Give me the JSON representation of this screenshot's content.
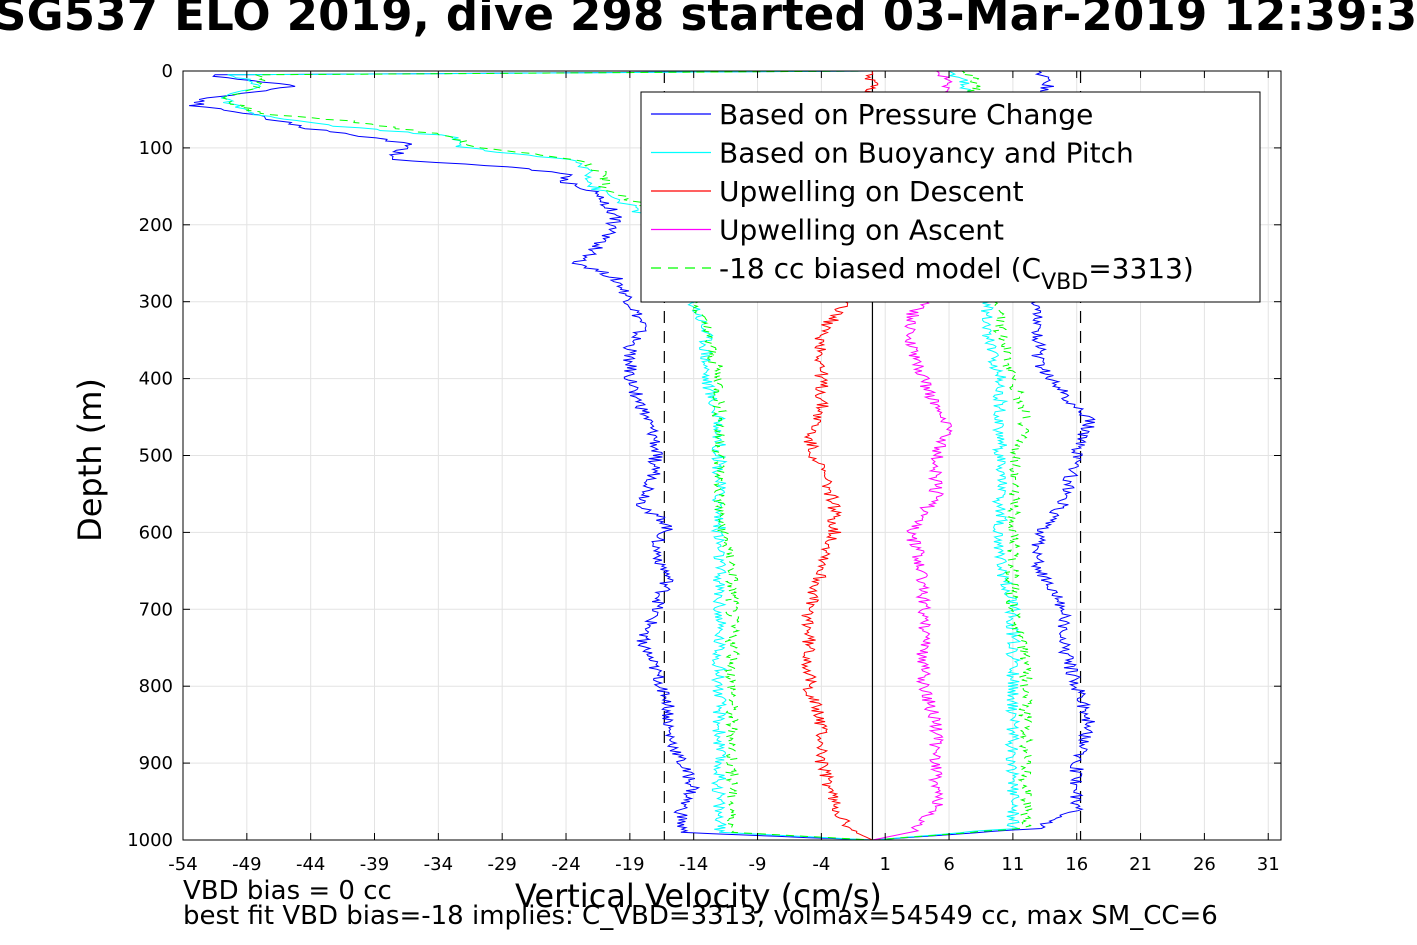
{
  "title": "SG537 ELO 2019, dive 298 started 03-Mar-2019 12:39:3",
  "footer": {
    "line1": "VBD bias = 0 cc",
    "line2": "best fit VBD bias=-18 implies: C_VBD=3313, volmax=54549 cc, max SM_CC=6"
  },
  "chart_data": {
    "type": "line",
    "xlabel": "Vertical Velocity (cm/s)",
    "ylabel": "Depth (m)",
    "xlim": [
      -54,
      32
    ],
    "ylim": [
      0,
      1000
    ],
    "y_reversed": true,
    "grid": true,
    "legend_position": "top-right",
    "x_ticks": [
      -54,
      -49,
      -44,
      -39,
      -34,
      -29,
      -24,
      -19,
      -14,
      -9,
      -4,
      1,
      6,
      11,
      16,
      21,
      26,
      31
    ],
    "y_ticks": [
      0,
      100,
      200,
      300,
      400,
      500,
      600,
      700,
      800,
      900,
      1000
    ],
    "vertical_lines": [
      {
        "x": -16.3,
        "style": "dashed",
        "color": "#000000"
      },
      {
        "x": 16.3,
        "style": "dashed",
        "color": "#000000"
      },
      {
        "x": 0.0,
        "style": "solid",
        "color": "#000000"
      }
    ],
    "legend": {
      "entries": [
        {
          "label": "Based on Pressure Change",
          "color": "#0000ff",
          "dash": "solid"
        },
        {
          "label": "Based on Buoyancy and Pitch",
          "color": "#00ffff",
          "dash": "solid"
        },
        {
          "label": "Upwelling on Descent",
          "color": "#ff0000",
          "dash": "solid"
        },
        {
          "label": "Upwelling on Ascent",
          "color": "#ff00ff",
          "dash": "solid"
        },
        {
          "label": "-18 cc biased model (C",
          "sub": "VBD",
          "suffix": "=3313)",
          "color": "#00ff00",
          "dash": "dashed"
        }
      ]
    },
    "series": [
      {
        "name": "Based on Pressure Change (descent)",
        "color": "#0000ff",
        "dash": "solid",
        "points": [
          [
            0,
            0
          ],
          [
            -52,
            5
          ],
          [
            -45,
            20
          ],
          [
            -52,
            35
          ],
          [
            -53,
            45
          ],
          [
            -49,
            55
          ],
          [
            -44,
            75
          ],
          [
            -36,
            95
          ],
          [
            -38,
            115
          ],
          [
            -28,
            125
          ],
          [
            -24,
            135
          ],
          [
            -24,
            145
          ],
          [
            -22,
            155
          ],
          [
            -21,
            170
          ],
          [
            -20,
            190
          ],
          [
            -21,
            220
          ],
          [
            -23,
            250
          ],
          [
            -20,
            270
          ],
          [
            -19,
            300
          ],
          [
            -18,
            330
          ],
          [
            -19,
            360
          ],
          [
            -19,
            400
          ],
          [
            -18,
            440
          ],
          [
            -17,
            480
          ],
          [
            -17,
            520
          ],
          [
            -18,
            565
          ],
          [
            -16,
            590
          ],
          [
            -17,
            620
          ],
          [
            -16,
            660
          ],
          [
            -17,
            700
          ],
          [
            -18,
            745
          ],
          [
            -17,
            780
          ],
          [
            -16,
            820
          ],
          [
            -16,
            860
          ],
          [
            -15,
            900
          ],
          [
            -14,
            930
          ],
          [
            -15,
            960
          ],
          [
            -15,
            990
          ],
          [
            -5,
            997
          ],
          [
            0,
            1000
          ]
        ]
      },
      {
        "name": "Based on Buoyancy and Pitch (descent)",
        "color": "#00ffff",
        "dash": "solid",
        "points": [
          [
            0,
            0
          ],
          [
            -50,
            5
          ],
          [
            -48,
            20
          ],
          [
            -51,
            35
          ],
          [
            -49,
            55
          ],
          [
            -43,
            70
          ],
          [
            -33,
            85
          ],
          [
            -32,
            100
          ],
          [
            -24,
            115
          ],
          [
            -22,
            130
          ],
          [
            -22,
            150
          ],
          [
            -19,
            175
          ],
          [
            -16,
            210
          ],
          [
            -15,
            260
          ],
          [
            -14,
            300
          ],
          [
            -13,
            340
          ],
          [
            -13,
            400
          ],
          [
            -12,
            460
          ],
          [
            -12,
            520
          ],
          [
            -12,
            580
          ],
          [
            -12,
            640
          ],
          [
            -12,
            700
          ],
          [
            -12,
            760
          ],
          [
            -12,
            820
          ],
          [
            -12,
            880
          ],
          [
            -12,
            940
          ],
          [
            -12,
            990
          ],
          [
            0,
            1000
          ]
        ]
      },
      {
        "name": "Upwelling on Descent",
        "color": "#ff0000",
        "dash": "solid",
        "points": [
          [
            0,
            0
          ],
          [
            -2,
            300
          ],
          [
            -4,
            340
          ],
          [
            -4,
            400
          ],
          [
            -4,
            440
          ],
          [
            -5,
            480
          ],
          [
            -4,
            520
          ],
          [
            -3,
            560
          ],
          [
            -3,
            600
          ],
          [
            -4,
            650
          ],
          [
            -5,
            700
          ],
          [
            -5,
            750
          ],
          [
            -5,
            800
          ],
          [
            -4,
            850
          ],
          [
            -4,
            900
          ],
          [
            -3,
            950
          ],
          [
            -2,
            985
          ],
          [
            0,
            1000
          ]
        ]
      },
      {
        "name": "-18 cc biased model (descent)",
        "color": "#00ff00",
        "dash": "dashed",
        "points": [
          [
            0,
            0
          ],
          [
            -48,
            5
          ],
          [
            -48,
            20
          ],
          [
            -51,
            35
          ],
          [
            -48,
            55
          ],
          [
            -41,
            65
          ],
          [
            -33,
            85
          ],
          [
            -31,
            100
          ],
          [
            -23,
            115
          ],
          [
            -21,
            135
          ],
          [
            -21,
            150
          ],
          [
            -18,
            175
          ],
          [
            -15,
            210
          ],
          [
            -14,
            260
          ],
          [
            -14,
            300
          ],
          [
            -13,
            340
          ],
          [
            -12,
            400
          ],
          [
            -12,
            460
          ],
          [
            -12,
            520
          ],
          [
            -12,
            580
          ],
          [
            -11,
            640
          ],
          [
            -11,
            700
          ],
          [
            -11,
            760
          ],
          [
            -11,
            820
          ],
          [
            -11,
            880
          ],
          [
            -11,
            940
          ],
          [
            -11,
            990
          ],
          [
            0,
            1000
          ]
        ]
      },
      {
        "name": "Based on Pressure Change (ascent)",
        "color": "#0000ff",
        "dash": "solid",
        "points": [
          [
            0,
            1000
          ],
          [
            13,
            985
          ],
          [
            16,
            960
          ],
          [
            16,
            900
          ],
          [
            17,
            850
          ],
          [
            16,
            800
          ],
          [
            15,
            750
          ],
          [
            15,
            700
          ],
          [
            13,
            650
          ],
          [
            13,
            600
          ],
          [
            15,
            560
          ],
          [
            16,
            500
          ],
          [
            17,
            455
          ],
          [
            15,
            420
          ],
          [
            13,
            380
          ],
          [
            13,
            340
          ],
          [
            13,
            300
          ],
          [
            13,
            250
          ],
          [
            11,
            200
          ],
          [
            11,
            150
          ],
          [
            11,
            100
          ],
          [
            13,
            50
          ],
          [
            14,
            10
          ],
          [
            13,
            0
          ]
        ]
      },
      {
        "name": "Based on Buoyancy and Pitch (ascent)",
        "color": "#00ffff",
        "dash": "solid",
        "points": [
          [
            0,
            1000
          ],
          [
            11,
            985
          ],
          [
            11,
            940
          ],
          [
            11,
            880
          ],
          [
            11,
            820
          ],
          [
            11,
            760
          ],
          [
            11,
            700
          ],
          [
            10,
            640
          ],
          [
            10,
            580
          ],
          [
            10,
            520
          ],
          [
            10,
            455
          ],
          [
            10,
            400
          ],
          [
            9,
            340
          ],
          [
            9,
            300
          ],
          [
            9,
            250
          ],
          [
            8,
            200
          ],
          [
            8,
            150
          ],
          [
            8,
            100
          ],
          [
            8,
            50
          ],
          [
            7,
            10
          ],
          [
            6,
            0
          ]
        ]
      },
      {
        "name": "-18 cc biased model (ascent)",
        "color": "#00ff00",
        "dash": "dashed",
        "points": [
          [
            0,
            1000
          ],
          [
            12,
            985
          ],
          [
            12,
            940
          ],
          [
            12,
            880
          ],
          [
            12,
            820
          ],
          [
            12,
            760
          ],
          [
            11,
            700
          ],
          [
            11,
            640
          ],
          [
            11,
            580
          ],
          [
            11,
            520
          ],
          [
            12,
            455
          ],
          [
            11,
            400
          ],
          [
            10,
            340
          ],
          [
            10,
            300
          ],
          [
            10,
            250
          ],
          [
            9,
            200
          ],
          [
            9,
            150
          ],
          [
            9,
            100
          ],
          [
            8,
            50
          ],
          [
            8,
            10
          ],
          [
            7,
            0
          ]
        ]
      },
      {
        "name": "Upwelling on Ascent",
        "color": "#ff00ff",
        "dash": "solid",
        "points": [
          [
            0,
            1000
          ],
          [
            3,
            990
          ],
          [
            5,
            960
          ],
          [
            5,
            900
          ],
          [
            5,
            850
          ],
          [
            4,
            800
          ],
          [
            4,
            750
          ],
          [
            4,
            700
          ],
          [
            4,
            650
          ],
          [
            3,
            600
          ],
          [
            5,
            550
          ],
          [
            5,
            500
          ],
          [
            6,
            470
          ],
          [
            5,
            440
          ],
          [
            4,
            400
          ],
          [
            3,
            360
          ],
          [
            3,
            320
          ],
          [
            4,
            300
          ],
          [
            5,
            250
          ],
          [
            5,
            200
          ],
          [
            6,
            150
          ],
          [
            6,
            100
          ],
          [
            6,
            50
          ],
          [
            6,
            10
          ],
          [
            5,
            0
          ]
        ]
      }
    ]
  }
}
